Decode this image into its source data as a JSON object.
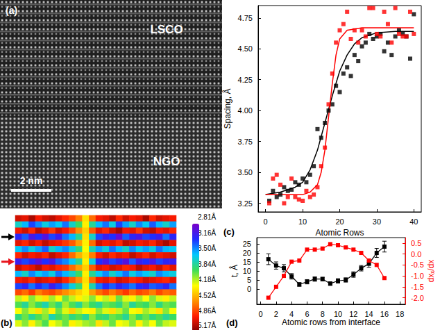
{
  "chart_data": [
    {
      "type": "image",
      "panel": "(a)",
      "annotations": [
        "LSCO",
        "NGO"
      ],
      "scale_bar": "2 nm"
    },
    {
      "type": "heatmap",
      "panel": "(b)",
      "cells": [
        [
          4.95,
          4.9,
          5.05,
          4.85,
          4.95,
          5.0,
          4.9,
          4.8,
          4.7,
          4.55,
          4.25,
          4.6,
          4.85,
          4.9,
          5.0,
          4.8,
          4.95,
          4.85,
          4.9,
          5.05,
          4.8,
          4.95,
          4.9,
          4.85
        ],
        [
          3.6,
          3.45,
          3.2,
          3.35,
          3.55,
          3.4,
          3.5,
          3.3,
          3.6,
          3.8,
          4.2,
          3.7,
          3.45,
          3.3,
          3.55,
          3.2,
          3.4,
          3.6,
          3.35,
          3.5,
          3.25,
          3.45,
          3.6,
          3.4
        ],
        [
          4.85,
          4.95,
          4.8,
          5.0,
          4.9,
          4.75,
          4.95,
          4.85,
          4.7,
          4.5,
          4.3,
          4.65,
          4.9,
          4.8,
          4.95,
          5.05,
          4.85,
          4.9,
          4.75,
          4.95,
          5.0,
          4.85,
          4.9,
          4.8
        ],
        [
          3.1,
          3.25,
          3.0,
          3.15,
          2.95,
          3.2,
          3.05,
          3.3,
          3.45,
          3.7,
          4.25,
          3.6,
          3.2,
          3.05,
          3.15,
          2.9,
          3.25,
          3.1,
          3.0,
          3.2,
          3.15,
          3.05,
          3.3,
          3.1
        ],
        [
          4.9,
          4.8,
          4.95,
          4.85,
          5.0,
          4.9,
          4.85,
          4.75,
          4.65,
          4.45,
          4.2,
          4.6,
          4.95,
          4.85,
          4.9,
          4.8,
          5.0,
          4.95,
          4.85,
          4.9,
          4.8,
          4.95,
          5.05,
          4.9
        ],
        [
          3.5,
          3.35,
          3.55,
          3.4,
          3.25,
          3.6,
          3.45,
          3.35,
          3.55,
          3.75,
          4.15,
          3.65,
          3.4,
          3.55,
          3.3,
          3.45,
          3.6,
          3.35,
          3.5,
          3.4,
          3.55,
          3.3,
          3.45,
          3.5
        ],
        [
          4.8,
          4.95,
          4.85,
          4.9,
          4.8,
          5.0,
          4.9,
          4.8,
          4.6,
          4.4,
          4.25,
          4.55,
          4.85,
          4.95,
          4.8,
          4.9,
          4.85,
          5.0,
          4.9,
          4.8,
          4.95,
          4.85,
          4.9,
          4.95
        ],
        [
          3.05,
          3.2,
          3.1,
          2.95,
          3.15,
          3.0,
          3.25,
          3.35,
          3.5,
          3.7,
          4.2,
          3.55,
          3.15,
          3.0,
          3.2,
          3.1,
          2.95,
          3.25,
          3.05,
          3.15,
          3.0,
          3.2,
          3.1,
          3.05
        ],
        [
          4.95,
          4.85,
          4.9,
          5.0,
          4.85,
          4.9,
          4.8,
          4.75,
          4.6,
          4.45,
          4.3,
          4.65,
          4.9,
          4.85,
          4.95,
          4.9,
          4.8,
          4.85,
          5.0,
          4.9,
          4.85,
          4.95,
          4.8,
          4.9
        ],
        [
          3.45,
          3.6,
          3.35,
          3.5,
          3.4,
          3.55,
          3.3,
          3.45,
          3.6,
          3.8,
          4.2,
          3.7,
          3.5,
          3.35,
          3.6,
          3.45,
          3.3,
          3.55,
          3.4,
          3.5,
          3.6,
          3.35,
          3.45,
          3.55
        ],
        [
          4.85,
          4.9,
          4.8,
          4.95,
          4.9,
          4.85,
          4.95,
          4.8,
          4.65,
          4.5,
          4.25,
          4.6,
          4.85,
          4.9,
          4.8,
          4.95,
          4.9,
          4.8,
          4.85,
          4.95,
          4.9,
          4.85,
          4.8,
          4.9
        ],
        [
          3.2,
          3.1,
          3.3,
          3.15,
          3.25,
          3.05,
          3.2,
          3.35,
          3.55,
          3.75,
          4.2,
          3.65,
          3.3,
          3.15,
          3.25,
          3.1,
          3.2,
          3.3,
          3.15,
          3.05,
          3.25,
          3.2,
          3.1,
          3.3
        ],
        [
          4.7,
          4.6,
          4.75,
          4.55,
          4.65,
          4.7,
          4.6,
          4.5,
          4.4,
          4.3,
          4.2,
          4.45,
          4.6,
          4.7,
          4.55,
          4.65,
          4.75,
          4.6,
          4.7,
          4.65,
          4.55,
          4.7,
          4.6,
          4.65
        ],
        [
          4.05,
          4.2,
          3.95,
          4.1,
          4.25,
          4.0,
          4.15,
          3.9,
          4.05,
          4.2,
          4.1,
          3.95,
          4.15,
          4.05,
          4.25,
          3.9,
          4.1,
          4.2,
          4.0,
          4.15,
          3.95,
          4.1,
          4.2,
          4.05
        ],
        [
          3.85,
          3.7,
          3.95,
          3.8,
          3.65,
          3.9,
          3.75,
          4.0,
          3.85,
          3.7,
          3.95,
          3.8,
          3.7,
          3.9,
          3.85,
          3.75,
          3.95,
          3.7,
          3.85,
          3.8,
          3.95,
          3.75,
          3.9,
          3.85
        ],
        [
          4.15,
          3.95,
          4.1,
          4.25,
          4.0,
          4.2,
          3.9,
          4.1,
          4.3,
          4.05,
          4.15,
          4.2,
          3.95,
          4.1,
          4.25,
          4.05,
          3.9,
          4.15,
          4.2,
          4.0,
          4.1,
          4.25,
          3.95,
          4.15
        ],
        [
          3.75,
          3.9,
          3.7,
          3.85,
          3.95,
          3.65,
          3.8,
          3.9,
          3.75,
          3.85,
          3.7,
          3.95,
          3.8,
          3.75,
          3.9,
          3.85,
          3.7,
          3.95,
          3.8,
          3.9,
          3.75,
          3.85,
          3.7,
          3.8
        ],
        [
          4.1,
          3.95,
          4.2,
          4.0,
          3.85,
          4.15,
          4.05,
          3.9,
          4.2,
          4.1,
          4.0,
          3.95,
          4.25,
          4.05,
          3.9,
          4.15,
          4.1,
          3.95,
          4.2,
          4.0,
          4.15,
          3.9,
          4.05,
          4.1
        ]
      ],
      "color_range": [
        2.81,
        5.17
      ],
      "color_ticks": [
        {
          "value": 2.81,
          "label": "2.81Å"
        },
        {
          "value": 3.16,
          "label": "3.16Å"
        },
        {
          "value": 3.5,
          "label": "3.50Å"
        },
        {
          "value": 3.84,
          "label": "3.84Å"
        },
        {
          "value": 4.18,
          "label": "4.18Å"
        },
        {
          "value": 4.52,
          "label": "4.52Å"
        },
        {
          "value": 4.86,
          "label": "4.86Å"
        },
        {
          "value": 5.17,
          "label": "5.17Å"
        }
      ],
      "arrows": [
        {
          "row": 3,
          "color": "#000000"
        },
        {
          "row": 7,
          "color": "#e8141c"
        }
      ]
    },
    {
      "type": "scatter",
      "panel": "(c)",
      "x_label": "Atomic Rows",
      "y_label": "Spacing, Å",
      "xlim": [
        -2,
        42
      ],
      "xticks": [
        0,
        10,
        20,
        30,
        40
      ],
      "ylim": [
        3.18,
        4.85
      ],
      "yticks": [
        3.25,
        {
          "value": 3.5,
          "label": "3.50"
        },
        3.75,
        {
          "value": 4,
          "label": "4.00"
        },
        4.25,
        {
          "value": 4.5,
          "label": "4.50"
        },
        4.75
      ],
      "grid": false,
      "series": [
        {
          "type": "scatter",
          "color": "#000000",
          "marker": "square",
          "x": [
            1,
            2,
            3,
            4,
            5,
            6,
            7,
            8,
            9,
            10,
            11,
            12,
            13,
            14,
            15,
            16,
            17,
            18,
            19,
            20,
            21,
            22,
            23,
            24,
            25,
            26,
            27,
            28,
            29,
            30,
            31,
            32,
            33,
            34,
            35,
            36,
            37,
            38,
            39,
            40
          ],
          "values": [
            3.27,
            3.35,
            3.3,
            3.32,
            3.38,
            3.35,
            3.36,
            3.42,
            3.4,
            3.45,
            3.42,
            3.48,
            3.55,
            3.85,
            3.78,
            3.9,
            4.0,
            4.05,
            4.2,
            4.15,
            4.3,
            4.35,
            4.28,
            4.45,
            4.4,
            4.52,
            4.55,
            4.62,
            4.58,
            4.6,
            4.62,
            4.48,
            4.55,
            4.45,
            4.6,
            4.65,
            4.62,
            4.6,
            4.42,
            4.78
          ]
        },
        {
          "type": "scatter",
          "color": "#ff0000",
          "marker": "square",
          "x": [
            1,
            2,
            3,
            4,
            5,
            6,
            7,
            8,
            9,
            10,
            11,
            12,
            13,
            14,
            15,
            16,
            17,
            18,
            19,
            20,
            21,
            22,
            23,
            24,
            25,
            26,
            27,
            28,
            29,
            30,
            31,
            32,
            33,
            34,
            35,
            36,
            37,
            38,
            39,
            40
          ],
          "values": [
            3.25,
            3.45,
            3.48,
            3.4,
            3.25,
            3.3,
            3.45,
            3.3,
            3.28,
            3.27,
            3.35,
            3.3,
            3.32,
            3.38,
            3.55,
            3.7,
            4.05,
            4.3,
            4.55,
            4.65,
            4.7,
            4.8,
            4.58,
            4.65,
            4.55,
            4.65,
            4.6,
            4.83,
            4.83,
            4.62,
            4.6,
            4.8,
            4.7,
            4.55,
            4.83,
            4.62,
            4.6,
            4.6,
            4.8,
            4.62
          ]
        },
        {
          "type": "line",
          "color": "#000000",
          "line_style": "solid",
          "x": [
            0,
            4,
            8,
            10,
            12,
            14,
            16,
            18,
            20,
            22,
            24,
            26,
            30,
            35,
            40
          ],
          "values": [
            3.32,
            3.34,
            3.38,
            3.42,
            3.52,
            3.68,
            3.9,
            4.12,
            4.32,
            4.45,
            4.54,
            4.59,
            4.63,
            4.64,
            4.64
          ]
        },
        {
          "type": "line",
          "color": "#ff0000",
          "line_style": "solid",
          "x": [
            0,
            10,
            12,
            14,
            15,
            16,
            17,
            18,
            19,
            20,
            22,
            26,
            40
          ],
          "values": [
            3.32,
            3.32,
            3.34,
            3.4,
            3.5,
            3.68,
            3.95,
            4.22,
            4.45,
            4.58,
            4.65,
            4.67,
            4.67
          ]
        }
      ]
    },
    {
      "type": "line",
      "panel": "(d)",
      "x_label": "Atomic rows from interface",
      "y_label": "t, Å",
      "y2_label": "dxₓ/dx",
      "xlim": [
        -0.5,
        18.7
      ],
      "xticks": [
        0,
        2,
        4,
        6,
        8,
        10,
        12,
        14,
        16,
        18
      ],
      "ylim": [
        -8.5,
        28.5
      ],
      "yticks": [
        0,
        5,
        10,
        15,
        20,
        25
      ],
      "y2lim": [
        -2.3,
        0.75
      ],
      "y2ticks": [
        0.5,
        {
          "value": 0,
          "label": "0.0"
        },
        -0.5,
        {
          "value": -1,
          "label": "-1.0"
        },
        -1.5,
        {
          "value": -2,
          "label": "-2.0"
        }
      ],
      "grid": false,
      "series": [
        {
          "type": "line",
          "color": "#000000",
          "marker": "square",
          "x": [
            1,
            2,
            3,
            4,
            5,
            6,
            7,
            8,
            9,
            10,
            11,
            12,
            13,
            14,
            15,
            16
          ],
          "values": [
            16.5,
            13,
            11.5,
            7,
            2.5,
            4,
            5.5,
            5.5,
            3,
            4.5,
            5,
            8,
            11.5,
            14,
            20,
            23.5
          ],
          "error": [
            3,
            2,
            2,
            1.5,
            1,
            1.2,
            1.2,
            1,
            1,
            1.2,
            1.2,
            1.5,
            1.5,
            2,
            2.5,
            3
          ]
        },
        {
          "type": "line",
          "color": "#ff0000",
          "marker": "square",
          "axis": "y2",
          "x": [
            1,
            2,
            3,
            4,
            5,
            6,
            7,
            8,
            9,
            10,
            11,
            12,
            13,
            14,
            15,
            16
          ],
          "values": [
            -2.0,
            -1.5,
            -1.0,
            -0.35,
            -0.3,
            0.2,
            0.2,
            0.25,
            0.45,
            0.4,
            0.3,
            0.2,
            0.05,
            -0.3,
            -0.5,
            -1.1
          ]
        }
      ]
    }
  ]
}
